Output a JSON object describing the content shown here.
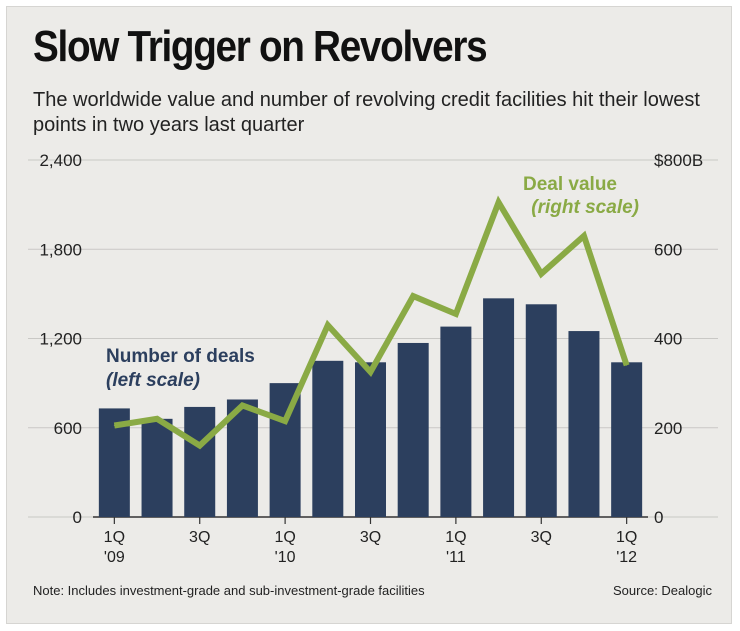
{
  "title": "Slow Trigger on Revolvers",
  "subtitle": "The worldwide value and number of revolving credit facilities hit their lowest points in two years last quarter",
  "note": "Note: Includes investment-grade and sub-investment-grade facilities",
  "source": "Source: Dealogic",
  "colors": {
    "background": "#ecebe8",
    "bars": "#2c3f5e",
    "line": "#8aaa45",
    "grid": "#c9c8c5"
  },
  "chart_data": {
    "type": "bar",
    "categories": [
      "1Q '09",
      "2Q '09",
      "3Q '09",
      "4Q '09",
      "1Q '10",
      "2Q '10",
      "3Q '10",
      "4Q '10",
      "1Q '11",
      "2Q '11",
      "3Q '11",
      "4Q '11",
      "1Q '12"
    ],
    "x_tick_labels": [
      {
        "index": 0,
        "line1": "1Q",
        "line2": "'09"
      },
      {
        "index": 2,
        "line1": "3Q",
        "line2": ""
      },
      {
        "index": 4,
        "line1": "1Q",
        "line2": "'10"
      },
      {
        "index": 6,
        "line1": "3Q",
        "line2": ""
      },
      {
        "index": 8,
        "line1": "1Q",
        "line2": "'11"
      },
      {
        "index": 10,
        "line1": "3Q",
        "line2": ""
      },
      {
        "index": 12,
        "line1": "1Q",
        "line2": "'12"
      }
    ],
    "series": [
      {
        "name": "Number of deals",
        "name_note": "(left scale)",
        "type": "bar",
        "axis": "left",
        "values": [
          730,
          660,
          740,
          790,
          900,
          1050,
          1040,
          1170,
          1280,
          1470,
          1430,
          1250,
          1040
        ]
      },
      {
        "name": "Deal value",
        "name_note": "(right scale)",
        "type": "line",
        "axis": "right",
        "values": [
          205,
          220,
          160,
          250,
          215,
          430,
          325,
          495,
          455,
          705,
          545,
          630,
          340
        ]
      }
    ],
    "left_axis": {
      "min": 0,
      "max": 2400,
      "ticks": [
        0,
        600,
        1200,
        1800,
        2400
      ],
      "tick_labels": [
        "0",
        "600",
        "1,200",
        "1,800",
        "2,400"
      ]
    },
    "right_axis": {
      "min": 0,
      "max": 800,
      "ticks": [
        0,
        200,
        400,
        600,
        800
      ],
      "tick_labels": [
        "0",
        "200",
        "400",
        "600",
        "$800B"
      ]
    },
    "grid": true
  }
}
